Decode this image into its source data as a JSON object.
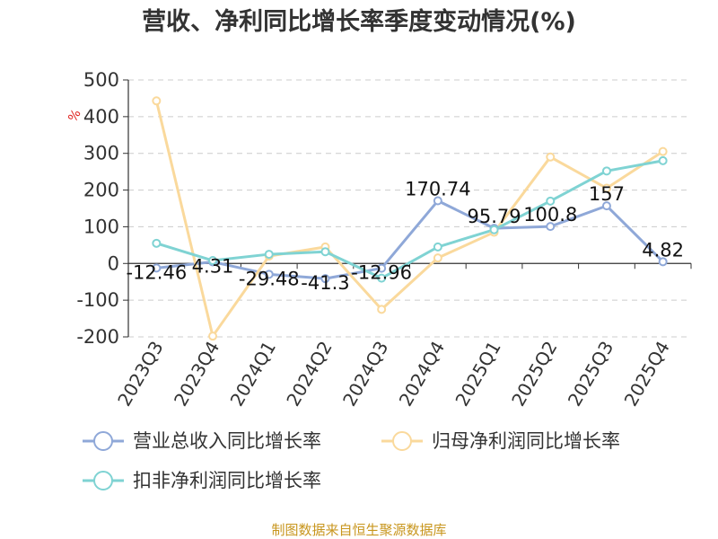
{
  "chart_data": {
    "type": "line",
    "title": "营收、净利同比增长率季度变动情况(%)",
    "unit": "%",
    "ylim": [
      -200,
      500
    ],
    "yticks": [
      500,
      400,
      300,
      200,
      100,
      0,
      -100,
      -200
    ],
    "categories": [
      "2023Q3",
      "2023Q4",
      "2024Q1",
      "2024Q2",
      "2024Q3",
      "2024Q4",
      "2025Q1",
      "2025Q2",
      "2025Q3",
      "2025Q4"
    ],
    "grid": true,
    "legend_position": "bottom",
    "series": [
      {
        "name": "营业总收入同比增长率",
        "color": "#8fa8d8",
        "values": [
          -12.46,
          4.31,
          -29.48,
          -41.3,
          -12.96,
          170.74,
          95.79,
          100.8,
          157,
          4.82
        ],
        "labels": [
          "-12.46",
          "4.31",
          "-29.48",
          "-41.3",
          "-12.96",
          "170.74",
          "95.79",
          "100.8",
          "157",
          "4.82"
        ]
      },
      {
        "name": "归母净利润同比增长率",
        "color": "#fad99c",
        "values": [
          443,
          -198,
          20,
          45,
          -125,
          15,
          85,
          290,
          205,
          305
        ]
      },
      {
        "name": "扣非净利润同比增长率",
        "color": "#7fd3d3",
        "values": [
          55,
          8,
          25,
          32,
          -40,
          45,
          92,
          170,
          252,
          280
        ]
      }
    ],
    "source": "制图数据来自恒生聚源数据库"
  }
}
